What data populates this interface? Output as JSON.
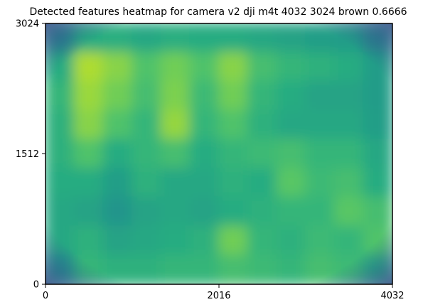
{
  "chart_data": {
    "type": "heatmap",
    "title": "Detected features heatmap for camera v2 dji m4t 4032 3024 brown 0.6666",
    "xlabel": "",
    "ylabel": "",
    "xlim": [
      0,
      4032
    ],
    "ylim": [
      0,
      3024
    ],
    "x_ticks": [
      0,
      2016,
      4032
    ],
    "y_ticks": [
      0,
      1512,
      3024
    ],
    "colormap": "viridis",
    "grid": false,
    "legend": "none",
    "grid_columns": 12,
    "grid_rows": 9,
    "values": [
      [
        0.45,
        0.62,
        0.63,
        0.6,
        0.63,
        0.62,
        0.62,
        0.6,
        0.58,
        0.56,
        0.55,
        0.45
      ],
      [
        0.62,
        0.88,
        0.82,
        0.72,
        0.78,
        0.72,
        0.82,
        0.7,
        0.66,
        0.64,
        0.62,
        0.55
      ],
      [
        0.66,
        0.85,
        0.78,
        0.7,
        0.8,
        0.68,
        0.78,
        0.66,
        0.62,
        0.58,
        0.58,
        0.55
      ],
      [
        0.64,
        0.82,
        0.72,
        0.66,
        0.84,
        0.66,
        0.72,
        0.64,
        0.6,
        0.6,
        0.6,
        0.56
      ],
      [
        0.64,
        0.72,
        0.62,
        0.66,
        0.7,
        0.62,
        0.66,
        0.68,
        0.7,
        0.66,
        0.66,
        0.6
      ],
      [
        0.62,
        0.62,
        0.56,
        0.64,
        0.6,
        0.6,
        0.64,
        0.62,
        0.74,
        0.68,
        0.7,
        0.62
      ],
      [
        0.6,
        0.58,
        0.52,
        0.58,
        0.6,
        0.58,
        0.62,
        0.64,
        0.66,
        0.66,
        0.74,
        0.7
      ],
      [
        0.6,
        0.64,
        0.58,
        0.6,
        0.62,
        0.64,
        0.78,
        0.66,
        0.64,
        0.68,
        0.66,
        0.72
      ],
      [
        0.5,
        0.66,
        0.64,
        0.64,
        0.66,
        0.66,
        0.7,
        0.68,
        0.66,
        0.7,
        0.68,
        0.62
      ]
    ]
  }
}
